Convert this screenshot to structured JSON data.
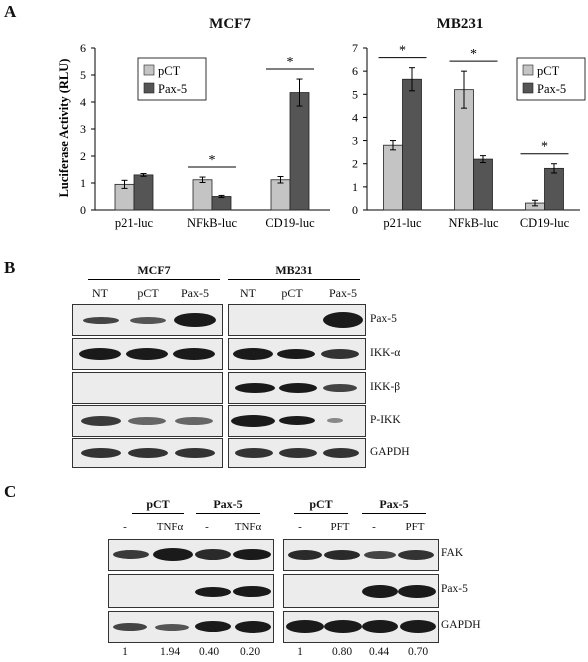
{
  "panels": {
    "a": "A",
    "b": "B",
    "c": "C"
  },
  "colors": {
    "pct_bar": "#c4c4c4",
    "pax5_bar": "#555555",
    "band": "#1a1a1a",
    "blot_bg": "#ececec"
  },
  "chart_data": [
    {
      "type": "bar",
      "title": "MCF7",
      "ylabel": "Luciferase Activity (RLU)",
      "xlabel": "",
      "categories": [
        "p21-luc",
        "NFkB-luc",
        "CD19-luc"
      ],
      "ylim": [
        0,
        6
      ],
      "yticks": [
        "0",
        "1",
        "2",
        "3",
        "4",
        "5",
        "6"
      ],
      "legend": {
        "position": "top-left",
        "entries": [
          "pCT",
          "Pax-5"
        ]
      },
      "series": [
        {
          "name": "pCT",
          "values": [
            0.95,
            1.12,
            1.12
          ],
          "errors": [
            0.15,
            0.1,
            0.12
          ]
        },
        {
          "name": "Pax-5",
          "values": [
            1.3,
            0.5,
            4.35
          ],
          "errors": [
            0.05,
            0.04,
            0.5
          ]
        }
      ],
      "significance": [
        {
          "category": 1,
          "label": "*"
        },
        {
          "category": 2,
          "label": "*"
        }
      ]
    },
    {
      "type": "bar",
      "title": "MB231",
      "ylabel": "",
      "xlabel": "",
      "categories": [
        "p21-luc",
        "NFkB-luc",
        "CD19-luc"
      ],
      "ylim": [
        0,
        7
      ],
      "yticks": [
        "0",
        "1",
        "2",
        "3",
        "4",
        "5",
        "6",
        "7"
      ],
      "legend": {
        "position": "top-right",
        "entries": [
          "pCT",
          "Pax-5"
        ]
      },
      "series": [
        {
          "name": "pCT",
          "values": [
            2.8,
            5.2,
            0.3
          ],
          "errors": [
            0.2,
            0.8,
            0.12
          ]
        },
        {
          "name": "Pax-5",
          "values": [
            5.65,
            2.2,
            1.8
          ],
          "errors": [
            0.5,
            0.15,
            0.2
          ]
        }
      ],
      "significance": [
        {
          "category": 0,
          "label": "*"
        },
        {
          "category": 1,
          "label": "*"
        },
        {
          "category": 2,
          "label": "*"
        }
      ]
    }
  ],
  "panel_b": {
    "groups": [
      "MCF7",
      "MB231"
    ],
    "lanes": [
      "NT",
      "pCT",
      "Pax-5"
    ],
    "proteins": [
      "Pax-5",
      "IKK-α",
      "IKK-β",
      "P-IKK",
      "GAPDH"
    ]
  },
  "panel_c": {
    "groups": [
      "pCT",
      "Pax-5",
      "pCT",
      "Pax-5"
    ],
    "left_lanes": [
      "-",
      "TNFα",
      "-",
      "TNFα"
    ],
    "right_lanes": [
      "-",
      "PFT",
      "-",
      "PFT"
    ],
    "proteins": [
      "FAK",
      "Pax-5",
      "GAPDH"
    ],
    "ratios": [
      "1",
      "1.94",
      "0.40",
      "0.20",
      "1",
      "0.80",
      "0.44",
      "0.70"
    ]
  }
}
